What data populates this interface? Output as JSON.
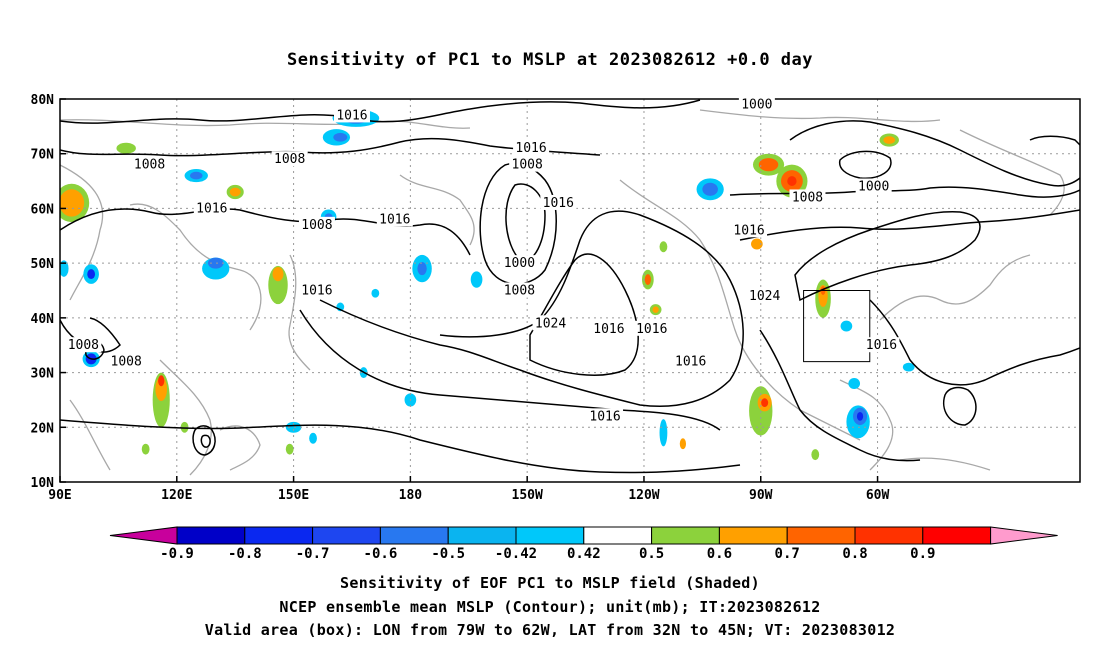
{
  "title": "Sensitivity of PC1 to MSLP at 2023082612 +0.0 day",
  "map": {
    "lat_labels": [
      "80N",
      "70N",
      "60N",
      "50N",
      "40N",
      "30N",
      "20N",
      "10N"
    ],
    "lon_labels": [
      "90E",
      "120E",
      "150E",
      "180",
      "150W",
      "120W",
      "90W",
      "60W"
    ],
    "contour_labels": [
      {
        "lon": 165,
        "lat": 77,
        "text": "1016"
      },
      {
        "lon": -149,
        "lat": 71,
        "text": "1016"
      },
      {
        "lon": -150,
        "lat": 68,
        "text": "1008"
      },
      {
        "lon": 113,
        "lat": 68,
        "text": "1008"
      },
      {
        "lon": 149,
        "lat": 69,
        "text": "1008"
      },
      {
        "lon": 129,
        "lat": 60,
        "text": "1016"
      },
      {
        "lon": 156,
        "lat": 57,
        "text": "1008"
      },
      {
        "lon": 176,
        "lat": 58,
        "text": "1016"
      },
      {
        "lon": -142,
        "lat": 61,
        "text": "1016"
      },
      {
        "lon": -152,
        "lat": 50,
        "text": "1000"
      },
      {
        "lon": -152,
        "lat": 45,
        "text": "1008"
      },
      {
        "lon": 156,
        "lat": 45,
        "text": "1016"
      },
      {
        "lon": -144,
        "lat": 39,
        "text": "1024"
      },
      {
        "lon": -129,
        "lat": 38,
        "text": "1016"
      },
      {
        "lon": -118,
        "lat": 38,
        "text": "1016"
      },
      {
        "lon": -108,
        "lat": 32,
        "text": "1016"
      },
      {
        "lon": -130,
        "lat": 22,
        "text": "1016"
      },
      {
        "lon": -89,
        "lat": 44,
        "text": "1024"
      },
      {
        "lon": -91,
        "lat": 79,
        "text": "1000"
      },
      {
        "lon": -78,
        "lat": 62,
        "text": "1008"
      },
      {
        "lon": -93,
        "lat": 56,
        "text": "1016"
      },
      {
        "lon": -61,
        "lat": 64,
        "text": "1000"
      },
      {
        "lon": -59,
        "lat": 35,
        "text": "1016"
      },
      {
        "lon": 96,
        "lat": 35,
        "text": "1008"
      },
      {
        "lon": 107,
        "lat": 32,
        "text": "1008"
      }
    ]
  },
  "colorbar": {
    "colors": [
      "#c8009c",
      "#0000c8",
      "#0a28f0",
      "#1e46f0",
      "#2878f0",
      "#0ab4f0",
      "#00c8fa",
      "#ffffff",
      "#8cd23c",
      "#ffa000",
      "#ff6400",
      "#ff3200",
      "#ff0000",
      "#ff9bcd"
    ],
    "labels": [
      "-0.9",
      "-0.8",
      "-0.7",
      "-0.6",
      "-0.5",
      "-0.42",
      "0.42",
      "0.5",
      "0.6",
      "0.7",
      "0.8",
      "0.9"
    ]
  },
  "captions": {
    "line1": "Sensitivity of EOF PC1 to MSLP field (Shaded)",
    "line2": "NCEP ensemble mean MSLP (Contour); unit(mb); IT:2023082612",
    "line3": "Valid area (box): LON from 79W to 62W, LAT from 32N to 45N; VT: 2023083012"
  },
  "valid_box": {
    "lon_min": -79,
    "lon_max": -62,
    "lat_min": 32,
    "lat_max": 45
  },
  "shaded_features": [
    {
      "lon": 166,
      "lat": 76.5,
      "rx": 6,
      "ry": 1.6,
      "color": "#00c8fa"
    },
    {
      "lon": 166,
      "lat": 76.5,
      "rx": 3.5,
      "ry": 1.0,
      "color": "#2878f0"
    },
    {
      "lon": 166,
      "lat": 76.5,
      "rx": 1.5,
      "ry": 0.6,
      "color": "#0a28f0"
    },
    {
      "lon": 161,
      "lat": 73,
      "rx": 3.5,
      "ry": 1.5,
      "color": "#00c8fa"
    },
    {
      "lon": 162,
      "lat": 73,
      "rx": 1.8,
      "ry": 0.8,
      "color": "#2878f0"
    },
    {
      "lon": 125,
      "lat": 66,
      "rx": 3,
      "ry": 1.2,
      "color": "#00c8fa"
    },
    {
      "lon": 125,
      "lat": 66,
      "rx": 1.6,
      "ry": 0.7,
      "color": "#2878f0"
    },
    {
      "lon": 135,
      "lat": 63,
      "rx": 2.2,
      "ry": 1.3,
      "color": "#8cd23c"
    },
    {
      "lon": 135,
      "lat": 63,
      "rx": 1.4,
      "ry": 0.8,
      "color": "#ffa000"
    },
    {
      "lon": 107,
      "lat": 71,
      "rx": 2.5,
      "ry": 1,
      "color": "#8cd23c"
    },
    {
      "lon": 93,
      "lat": 61,
      "rx": 4.5,
      "ry": 3.5,
      "color": "#8cd23c"
    },
    {
      "lon": 93,
      "lat": 61,
      "rx": 3.2,
      "ry": 2.5,
      "color": "#ffa000"
    },
    {
      "lon": 130,
      "lat": 49,
      "rx": 3.5,
      "ry": 2,
      "color": "#00c8fa"
    },
    {
      "lon": 130,
      "lat": 50,
      "rx": 2,
      "ry": 1,
      "color": "#2878f0"
    },
    {
      "lon": 98,
      "lat": 48,
      "rx": 2,
      "ry": 1.8,
      "color": "#00c8fa"
    },
    {
      "lon": 98,
      "lat": 48,
      "rx": 1,
      "ry": 0.9,
      "color": "#0a28f0"
    },
    {
      "lon": 91,
      "lat": 49,
      "rx": 1.2,
      "ry": 1.5,
      "color": "#00c8fa"
    },
    {
      "lon": 146,
      "lat": 46,
      "rx": 2.5,
      "ry": 3.5,
      "color": "#8cd23c"
    },
    {
      "lon": 146,
      "lat": 48,
      "rx": 1.4,
      "ry": 1.3,
      "color": "#ffa000"
    },
    {
      "lon": 159,
      "lat": 58.5,
      "rx": 2,
      "ry": 1.3,
      "color": "#00c8fa"
    },
    {
      "lon": 159,
      "lat": 58.5,
      "rx": 1,
      "ry": 0.6,
      "color": "#2878f0"
    },
    {
      "lon": -177,
      "lat": 49,
      "rx": 2.5,
      "ry": 2.5,
      "color": "#00c8fa"
    },
    {
      "lon": -177,
      "lat": 49,
      "rx": 1.2,
      "ry": 1.2,
      "color": "#2878f0"
    },
    {
      "lon": -163,
      "lat": 47,
      "rx": 1.5,
      "ry": 1.5,
      "color": "#00c8fa"
    },
    {
      "lon": 98,
      "lat": 32.5,
      "rx": 2.2,
      "ry": 1.5,
      "color": "#00c8fa"
    },
    {
      "lon": 98,
      "lat": 32.5,
      "rx": 1.4,
      "ry": 1,
      "color": "#0a28f0"
    },
    {
      "lon": 116,
      "lat": 25,
      "rx": 2.2,
      "ry": 5,
      "color": "#8cd23c"
    },
    {
      "lon": 116,
      "lat": 27,
      "rx": 1.5,
      "ry": 2.2,
      "color": "#ffa000"
    },
    {
      "lon": 116,
      "lat": 28.5,
      "rx": 0.8,
      "ry": 1,
      "color": "#ff3200"
    },
    {
      "lon": 112,
      "lat": 16,
      "rx": 1,
      "ry": 1,
      "color": "#8cd23c"
    },
    {
      "lon": 122,
      "lat": 20,
      "rx": 1,
      "ry": 1,
      "color": "#8cd23c"
    },
    {
      "lon": 150,
      "lat": 20,
      "rx": 2,
      "ry": 1,
      "color": "#00c8fa"
    },
    {
      "lon": 149,
      "lat": 16,
      "rx": 1,
      "ry": 1,
      "color": "#8cd23c"
    },
    {
      "lon": 180,
      "lat": 25,
      "rx": 1.5,
      "ry": 1.2,
      "color": "#00c8fa"
    },
    {
      "lon": 155,
      "lat": 18,
      "rx": 1,
      "ry": 1,
      "color": "#00c8fa"
    },
    {
      "lon": -88,
      "lat": 68,
      "rx": 4,
      "ry": 2,
      "color": "#8cd23c"
    },
    {
      "lon": -88,
      "lat": 68,
      "rx": 2.5,
      "ry": 1.2,
      "color": "#ff6400"
    },
    {
      "lon": -82,
      "lat": 65,
      "rx": 4,
      "ry": 3,
      "color": "#8cd23c"
    },
    {
      "lon": -82,
      "lat": 65,
      "rx": 2.8,
      "ry": 2,
      "color": "#ff6400"
    },
    {
      "lon": -82,
      "lat": 65,
      "rx": 1.2,
      "ry": 0.9,
      "color": "#ff3200"
    },
    {
      "lon": -103,
      "lat": 63.5,
      "rx": 3.5,
      "ry": 2,
      "color": "#00c8fa"
    },
    {
      "lon": -103,
      "lat": 63.5,
      "rx": 2,
      "ry": 1.2,
      "color": "#2878f0"
    },
    {
      "lon": -57,
      "lat": 72.5,
      "rx": 2.5,
      "ry": 1.2,
      "color": "#8cd23c"
    },
    {
      "lon": -57,
      "lat": 72.5,
      "rx": 1.5,
      "ry": 0.7,
      "color": "#ffa000"
    },
    {
      "lon": -91,
      "lat": 53.5,
      "rx": 1.5,
      "ry": 1,
      "color": "#ffa000"
    },
    {
      "lon": -119,
      "lat": 47,
      "rx": 1.5,
      "ry": 1.8,
      "color": "#8cd23c"
    },
    {
      "lon": -119,
      "lat": 47,
      "rx": 0.8,
      "ry": 1,
      "color": "#ff6400"
    },
    {
      "lon": -117,
      "lat": 41.5,
      "rx": 1.5,
      "ry": 1,
      "color": "#8cd23c"
    },
    {
      "lon": -117,
      "lat": 41.5,
      "rx": 0.8,
      "ry": 0.6,
      "color": "#ffa000"
    },
    {
      "lon": -115,
      "lat": 53,
      "rx": 1,
      "ry": 1,
      "color": "#8cd23c"
    },
    {
      "lon": -74,
      "lat": 43.5,
      "rx": 2,
      "ry": 3.5,
      "color": "#8cd23c"
    },
    {
      "lon": -74,
      "lat": 44,
      "rx": 1.2,
      "ry": 2,
      "color": "#ffa000"
    },
    {
      "lon": -74,
      "lat": 45,
      "rx": 0.6,
      "ry": 0.8,
      "color": "#ff6400"
    },
    {
      "lon": -90,
      "lat": 23,
      "rx": 3,
      "ry": 4.5,
      "color": "#8cd23c"
    },
    {
      "lon": -89,
      "lat": 24.5,
      "rx": 1.8,
      "ry": 1.6,
      "color": "#ffa000"
    },
    {
      "lon": -89,
      "lat": 24.5,
      "rx": 0.9,
      "ry": 0.8,
      "color": "#ff3200"
    },
    {
      "lon": -65,
      "lat": 21,
      "rx": 3,
      "ry": 3,
      "color": "#00c8fa"
    },
    {
      "lon": -64.5,
      "lat": 22,
      "rx": 1.8,
      "ry": 1.6,
      "color": "#2878f0"
    },
    {
      "lon": -64.5,
      "lat": 22,
      "rx": 0.8,
      "ry": 0.8,
      "color": "#0a28f0"
    },
    {
      "lon": -66,
      "lat": 28,
      "rx": 1.5,
      "ry": 1,
      "color": "#00c8fa"
    },
    {
      "lon": -115,
      "lat": 19,
      "rx": 1,
      "ry": 2.5,
      "color": "#00c8fa"
    },
    {
      "lon": -110,
      "lat": 17,
      "rx": 0.8,
      "ry": 1,
      "color": "#ffa000"
    },
    {
      "lon": -76,
      "lat": 15,
      "rx": 1,
      "ry": 1,
      "color": "#8cd23c"
    },
    {
      "lon": -68,
      "lat": 38.5,
      "rx": 1.5,
      "ry": 1,
      "color": "#00c8fa"
    },
    {
      "lon": -52,
      "lat": 31,
      "rx": 1.5,
      "ry": 0.8,
      "color": "#00c8fa"
    },
    {
      "lon": 171,
      "lat": 44.5,
      "rx": 1,
      "ry": 0.8,
      "color": "#00c8fa"
    },
    {
      "lon": 168,
      "lat": 30,
      "rx": 1,
      "ry": 1,
      "color": "#00c8fa"
    },
    {
      "lon": 162,
      "lat": 42,
      "rx": 1,
      "ry": 0.8,
      "color": "#00c8fa"
    }
  ]
}
